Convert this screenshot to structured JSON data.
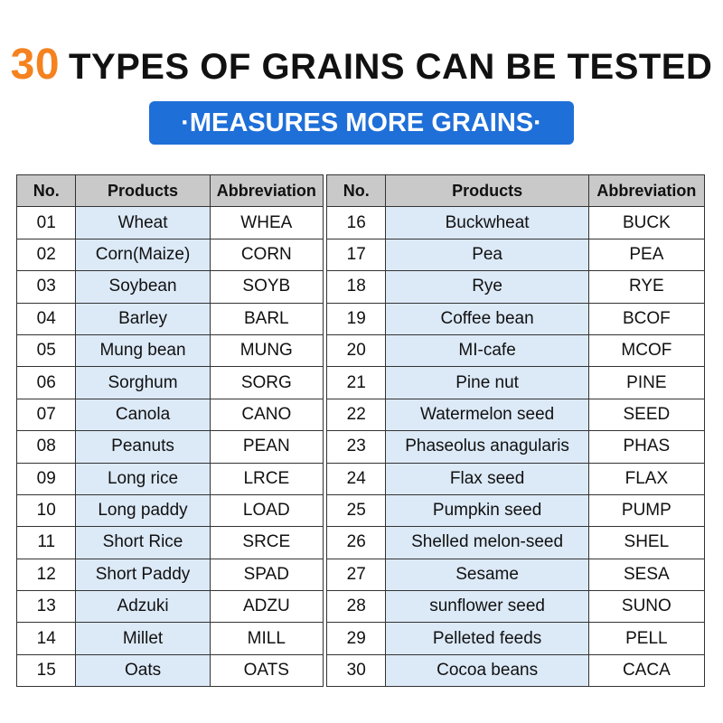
{
  "header": {
    "number": "30",
    "title": "TYPES OF GRAINS CAN BE TESTED",
    "badge": "·MEASURES MORE GRAINS·"
  },
  "tables": [
    {
      "headers": [
        "No.",
        "Products",
        "Abbreviation"
      ],
      "rows": [
        [
          "01",
          "Wheat",
          "WHEA"
        ],
        [
          "02",
          "Corn(Maize)",
          "CORN"
        ],
        [
          "03",
          "Soybean",
          "SOYB"
        ],
        [
          "04",
          "Barley",
          "BARL"
        ],
        [
          "05",
          "Mung bean",
          "MUNG"
        ],
        [
          "06",
          "Sorghum",
          "SORG"
        ],
        [
          "07",
          "Canola",
          "CANO"
        ],
        [
          "08",
          "Peanuts",
          "PEAN"
        ],
        [
          "09",
          "Long rice",
          "LRCE"
        ],
        [
          "10",
          "Long paddy",
          "LOAD"
        ],
        [
          "11",
          "Short Rice",
          "SRCE"
        ],
        [
          "12",
          "Short Paddy",
          "SPAD"
        ],
        [
          "13",
          "Adzuki",
          "ADZU"
        ],
        [
          "14",
          "Millet",
          "MILL"
        ],
        [
          "15",
          "Oats",
          "OATS"
        ]
      ]
    },
    {
      "headers": [
        "No.",
        "Products",
        "Abbreviation"
      ],
      "rows": [
        [
          "16",
          "Buckwheat",
          "BUCK"
        ],
        [
          "17",
          "Pea",
          "PEA"
        ],
        [
          "18",
          "Rye",
          "RYE"
        ],
        [
          "19",
          "Coffee bean",
          "BCOF"
        ],
        [
          "20",
          "MI-cafe",
          "MCOF"
        ],
        [
          "21",
          "Pine nut",
          "PINE"
        ],
        [
          "22",
          "Watermelon seed",
          "SEED"
        ],
        [
          "23",
          "Phaseolus anagularis",
          "PHAS"
        ],
        [
          "24",
          "Flax seed",
          "FLAX"
        ],
        [
          "25",
          "Pumpkin seed",
          "PUMP"
        ],
        [
          "26",
          "Shelled melon-seed",
          "SHEL"
        ],
        [
          "27",
          "Sesame",
          "SESA"
        ],
        [
          "28",
          "sunflower seed",
          "SUNO"
        ],
        [
          "29",
          "Pelleted feeds",
          "PELL"
        ],
        [
          "30",
          "Cocoa beans",
          "CACA"
        ]
      ]
    }
  ]
}
